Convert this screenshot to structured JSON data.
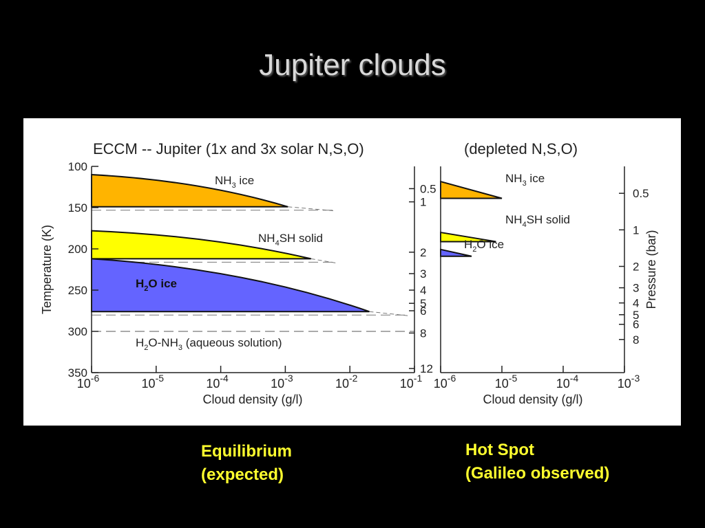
{
  "slide": {
    "title": "Jupiter clouds"
  },
  "captions": {
    "left_line1": "Equilibrium",
    "left_line2": "(expected)",
    "right_line1": "Hot Spot",
    "right_line2": "(Galileo observed)"
  },
  "colors": {
    "ammonia_ice": "#ffb400",
    "nh4sh_solid": "#ffff00",
    "water_ice": "#6464ff",
    "caption": "#ffff2e"
  },
  "chart_data": [
    {
      "type": "area",
      "title": "ECCM -- Jupiter (1x and 3x solar N,S,O)",
      "xlabel": "Cloud density (g/l)",
      "ylabel": "Temperature (K)",
      "y2label": "",
      "x_scale": "log",
      "xlim": [
        1e-06,
        0.1
      ],
      "x_ticks": [
        "-6",
        "-5",
        "-4",
        "-3",
        "-2",
        "-1"
      ],
      "ylim": [
        100,
        350
      ],
      "y_ticks": [
        "100",
        "150",
        "200",
        "250",
        "300",
        "350"
      ],
      "y2_ticks": [
        "0.5",
        "1",
        "2",
        "3",
        "4",
        "5",
        "6",
        "8",
        "12"
      ],
      "y2_tick_temps": [
        127,
        143,
        204,
        230,
        250,
        266,
        275,
        302,
        345
      ],
      "grid": false,
      "labels": {
        "nh3": "NH",
        "nh3_sub": "3",
        "nh3_tail": " ice",
        "nh4sh": "NH",
        "nh4sh_sub": "4",
        "nh4sh_tail": "SH solid",
        "h2o": "H",
        "h2o_sub": "2",
        "h2o_tail": "O ice",
        "aq_a": "H",
        "aq_sub1": "2",
        "aq_b": "O-NH",
        "aq_sub2": "3",
        "aq_tail": " (aqueous solution)"
      },
      "series": [
        {
          "name": "NH3 ice",
          "base_temp": 149,
          "top_temp": 110,
          "max_density": 0.0011,
          "peak_temp": 149,
          "dashed_extension_to": 0.006
        },
        {
          "name": "NH4SH solid",
          "base_temp": 212,
          "top_temp": 178,
          "max_density": 0.0025,
          "peak_temp": 212,
          "dashed_extension_to": 0.006
        },
        {
          "name": "H2O ice",
          "base_temp": 276,
          "top_temp": 212,
          "max_density": 0.02,
          "peak_temp": 276,
          "dashed_extension_to": 0.08
        },
        {
          "name": "H2O-NH3 (aqueous solution)",
          "base_temp": 300,
          "top_temp": 300,
          "max_density": 0.1
        }
      ]
    },
    {
      "type": "area",
      "title": "(depleted N,S,O)",
      "xlabel": "Cloud density (g/l)",
      "ylabel": "",
      "y2label": "Pressure (bar)",
      "x_scale": "log",
      "xlim": [
        1e-06,
        0.001
      ],
      "x_ticks": [
        "-6",
        "-5",
        "-4",
        "-3"
      ],
      "y2_ticks": [
        "0.5",
        "1",
        "2",
        "3",
        "4",
        "5",
        "6",
        "8"
      ],
      "grid": false,
      "labels": {
        "nh3": "NH",
        "nh3_sub": "3",
        "nh3_tail": " ice",
        "nh4sh": "NH",
        "nh4sh_sub": "4",
        "nh4sh_tail": "SH solid",
        "h2o": "H",
        "h2o_sub": "2",
        "h2o_tail": "O ice"
      },
      "series": [
        {
          "name": "NH3 ice",
          "pressure_top": 0.4,
          "pressure_base": 0.55,
          "max_density": 1e-05
        },
        {
          "name": "NH4SH solid",
          "pressure_top": 1.05,
          "pressure_base": 1.25,
          "max_density": 8e-06
        },
        {
          "name": "H2O ice",
          "pressure_top": 1.45,
          "pressure_base": 1.65,
          "max_density": 3.2e-06
        }
      ]
    }
  ]
}
